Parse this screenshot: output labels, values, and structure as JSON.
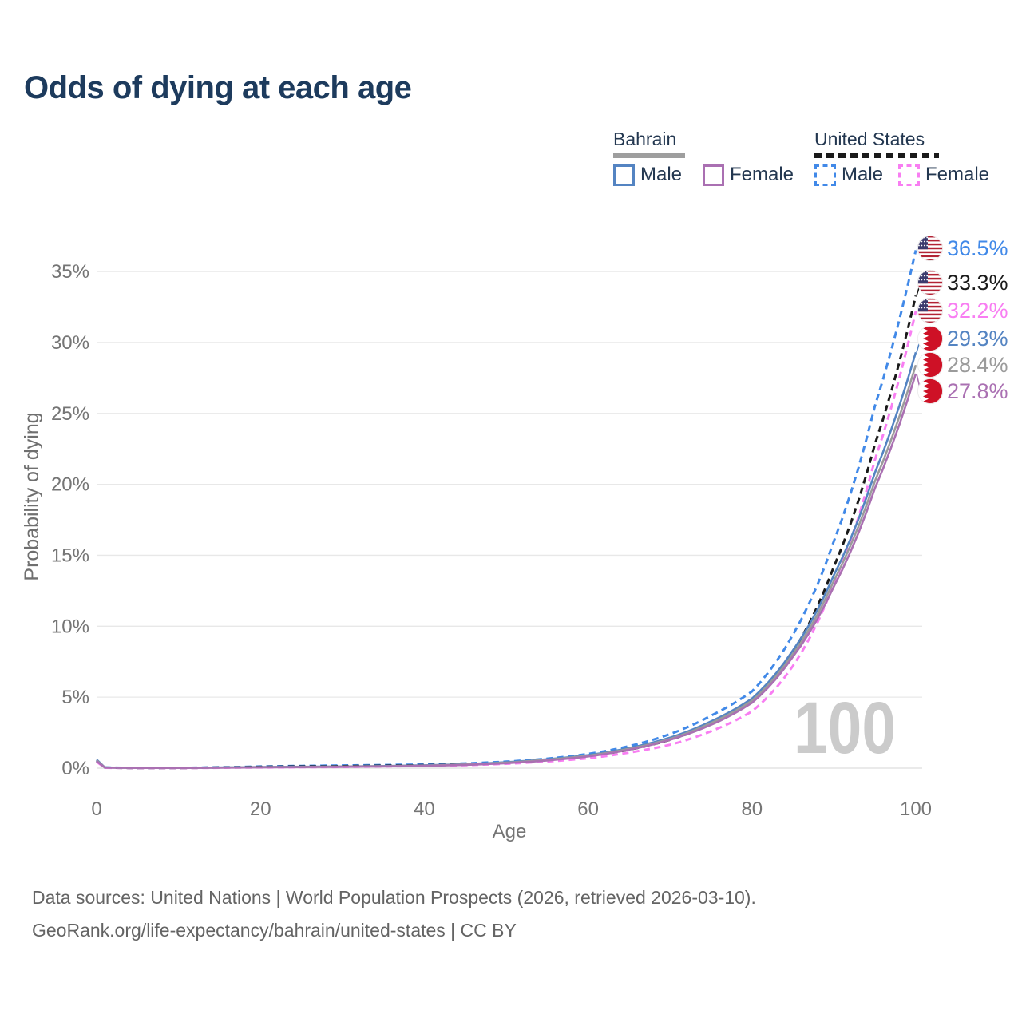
{
  "header": {
    "title": "Odds of dying at each age"
  },
  "legend": {
    "groups": [
      {
        "name": "Bahrain",
        "line_style": "solid",
        "line_color": "#9e9e9e",
        "items": [
          {
            "label": "Male",
            "color": "#5484c2",
            "style": "solid"
          },
          {
            "label": "Female",
            "color": "#aa70b2",
            "style": "solid"
          }
        ]
      },
      {
        "name": "United States",
        "line_style": "dashed",
        "line_color": "#1a1a1a",
        "items": [
          {
            "label": "Male",
            "color": "#4189e8",
            "style": "dashed"
          },
          {
            "label": "Female",
            "color": "#f87ef2",
            "style": "dashed"
          }
        ]
      }
    ]
  },
  "chart_data": {
    "type": "line",
    "title": "Odds of dying at each age",
    "xlabel": "Age",
    "ylabel": "Probability of dying",
    "xlim": [
      0,
      100
    ],
    "ylim": [
      0,
      37
    ],
    "x_ticks": [
      0,
      20,
      40,
      60,
      80,
      100
    ],
    "y_ticks": [
      "0%",
      "5%",
      "10%",
      "15%",
      "20%",
      "25%",
      "30%",
      "35%"
    ],
    "grid": "horizontal",
    "legend_position": "top-right",
    "watermark": "100",
    "ages": [
      0,
      1,
      5,
      10,
      15,
      20,
      25,
      30,
      35,
      40,
      45,
      50,
      55,
      60,
      65,
      70,
      75,
      80,
      85,
      90,
      95,
      100
    ],
    "series": [
      {
        "name": "United States — Male",
        "country": "United States",
        "sex": "Male",
        "color": "#4189e8",
        "dash": true,
        "flag": "us",
        "end_label": "36.5%",
        "end_value": 36.5,
        "values": [
          0.55,
          0.04,
          0.02,
          0.02,
          0.06,
          0.12,
          0.16,
          0.19,
          0.22,
          0.26,
          0.33,
          0.46,
          0.67,
          1.0,
          1.55,
          2.4,
          3.7,
          5.4,
          9.4,
          16.0,
          25.5,
          36.5
        ]
      },
      {
        "name": "United States — Both sexes",
        "country": "United States",
        "sex": "Both sexes",
        "color": "#1a1a1a",
        "dash": true,
        "flag": "us",
        "end_label": "33.3%",
        "end_value": 33.3,
        "values": [
          0.5,
          0.035,
          0.016,
          0.015,
          0.045,
          0.09,
          0.12,
          0.14,
          0.17,
          0.21,
          0.27,
          0.38,
          0.57,
          0.85,
          1.3,
          2.0,
          3.1,
          4.7,
          8.2,
          14.2,
          22.8,
          33.3
        ]
      },
      {
        "name": "United States — Female",
        "country": "United States",
        "sex": "Female",
        "color": "#f87ef2",
        "dash": true,
        "flag": "us",
        "end_label": "32.2%",
        "end_value": 32.2,
        "values": [
          0.45,
          0.03,
          0.013,
          0.012,
          0.03,
          0.05,
          0.065,
          0.085,
          0.12,
          0.16,
          0.21,
          0.31,
          0.47,
          0.7,
          1.1,
          1.65,
          2.6,
          4.0,
          7.2,
          13.0,
          21.7,
          32.2
        ]
      },
      {
        "name": "Bahrain — Male",
        "country": "Bahrain",
        "sex": "Male",
        "color": "#5484c2",
        "dash": false,
        "flag": "bh",
        "end_label": "29.3%",
        "end_value": 29.3,
        "values": [
          0.6,
          0.05,
          0.022,
          0.02,
          0.045,
          0.08,
          0.1,
          0.12,
          0.15,
          0.2,
          0.28,
          0.42,
          0.63,
          0.92,
          1.42,
          2.15,
          3.3,
          4.9,
          8.3,
          13.6,
          20.8,
          29.3
        ]
      },
      {
        "name": "Bahrain — Both sexes",
        "country": "Bahrain",
        "sex": "Both sexes",
        "color": "#9b9b9b",
        "dash": false,
        "flag": "bh",
        "end_label": "28.4%",
        "end_value": 28.4,
        "values": [
          0.55,
          0.045,
          0.02,
          0.018,
          0.04,
          0.07,
          0.09,
          0.11,
          0.14,
          0.18,
          0.26,
          0.39,
          0.59,
          0.88,
          1.36,
          2.06,
          3.18,
          4.75,
          8.05,
          13.2,
          20.2,
          28.4
        ]
      },
      {
        "name": "Bahrain — Female",
        "country": "Bahrain",
        "sex": "Female",
        "color": "#aa70b2",
        "dash": false,
        "flag": "bh",
        "end_label": "27.8%",
        "end_value": 27.8,
        "values": [
          0.5,
          0.04,
          0.018,
          0.016,
          0.033,
          0.06,
          0.075,
          0.095,
          0.125,
          0.165,
          0.23,
          0.35,
          0.54,
          0.83,
          1.3,
          2.0,
          3.05,
          4.6,
          7.85,
          12.8,
          19.7,
          27.8
        ]
      }
    ]
  },
  "footer": {
    "line1": "Data sources: United Nations | World Population Prospects (2026, retrieved 2026-03-10).",
    "line2": "GeoRank.org/life-expectancy/bahrain/united-states | CC BY"
  }
}
